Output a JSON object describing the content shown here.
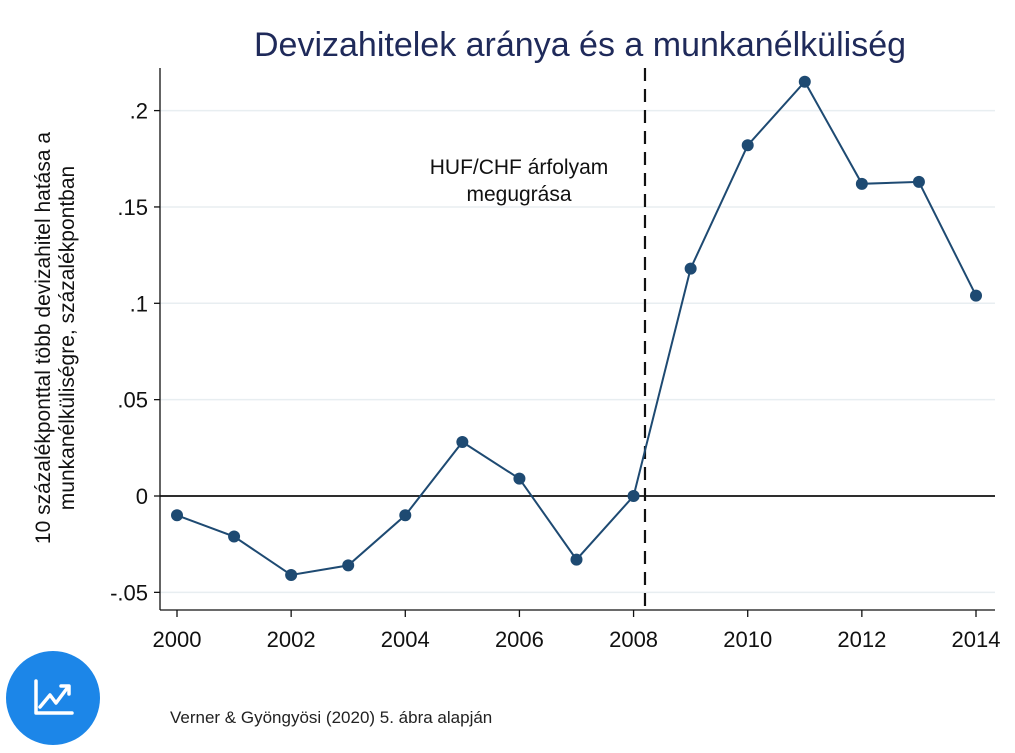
{
  "chart_data": {
    "type": "line",
    "title": "Devizahitelek aránya és a munkanélküliség",
    "ylabel_lines": [
      "10 százalékponttal több devizahitel hatása a",
      "munkanélküliségre, százalékpontban"
    ],
    "xlabel": "",
    "x": [
      2000,
      2001,
      2002,
      2003,
      2004,
      2005,
      2006,
      2007,
      2008,
      2009,
      2010,
      2011,
      2012,
      2013,
      2014
    ],
    "values": [
      -0.01,
      -0.021,
      -0.041,
      -0.036,
      -0.01,
      0.028,
      0.009,
      -0.033,
      0.0,
      0.118,
      0.182,
      0.215,
      0.162,
      0.163,
      0.104
    ],
    "xticks": [
      2000,
      2002,
      2004,
      2006,
      2008,
      2010,
      2012,
      2014
    ],
    "xtick_labels": [
      "2000",
      "2002",
      "2004",
      "2006",
      "2008",
      "2010",
      "2012",
      "2014"
    ],
    "yticks": [
      -0.05,
      0,
      0.05,
      0.1,
      0.15,
      0.2
    ],
    "ytick_labels": [
      "-.05",
      "0",
      ".05",
      ".1",
      ".15",
      ".2"
    ],
    "xlim": [
      1999.8,
      2014.2
    ],
    "ylim": [
      -0.06,
      0.225
    ],
    "grid": "horizontal",
    "zero_line": true,
    "vline": {
      "x": 2008.2,
      "style": "dashed",
      "annotation_lines": [
        "HUF/CHF árfolyam",
        "megugrása"
      ]
    },
    "colors": {
      "series": "#1e4a72",
      "title": "#1f2a5a",
      "grid": "#e8eef1"
    }
  },
  "footer": {
    "source": "Verner & Gyöngyösi (2020) 5. ábra alapján",
    "logo_icon": "chart-trend-icon",
    "logo_color": "#1c86e8"
  }
}
